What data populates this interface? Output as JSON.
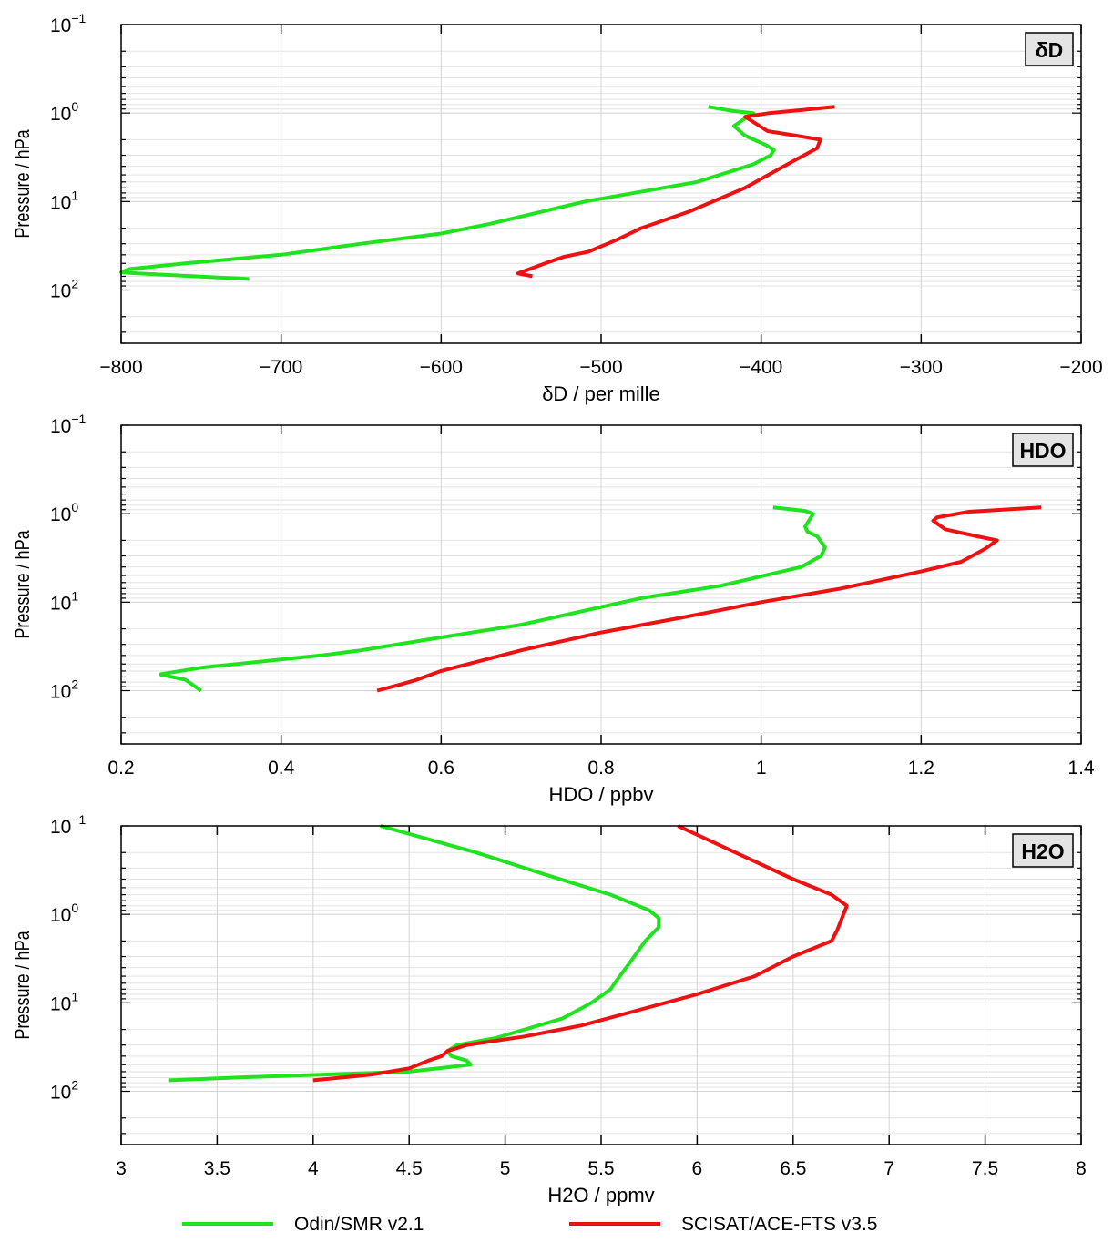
{
  "legend": [
    {
      "name": "Odin/SMR v2.1",
      "color": "#1ee31e"
    },
    {
      "name": "SCISAT/ACE-FTS v3.5",
      "color": "#ee1111"
    }
  ],
  "chart_data": [
    {
      "type": "line",
      "tag": "δD",
      "xlabel": "δD / per mille",
      "ylabel": "Pressure / hPa",
      "xlim": [
        -800,
        -200
      ],
      "xticks": [
        -800,
        -700,
        -600,
        -500,
        -400,
        -300,
        -200
      ],
      "xtick_labels": [
        "−800",
        "−700",
        "−600",
        "−500",
        "−400",
        "−300",
        "−200"
      ],
      "ylim": [
        0.1,
        400
      ],
      "yscale": "log",
      "yticks": [
        0.1,
        1,
        10,
        100
      ],
      "grid": true,
      "series": [
        {
          "name": "Odin/SMR v2.1",
          "color": "#1ee31e",
          "x": [
            -433,
            -417,
            -405,
            -417,
            -410,
            -397,
            -392,
            -394,
            -405,
            -440,
            -510,
            -570,
            -600,
            -650,
            -700,
            -760,
            -795,
            -800,
            -790,
            -720
          ],
          "y": [
            0.85,
            0.95,
            1.0,
            1.4,
            1.8,
            2.3,
            2.6,
            3.0,
            3.8,
            6.0,
            10,
            18,
            23,
            30,
            40,
            50,
            58,
            63,
            65,
            75
          ]
        },
        {
          "name": "SCISAT/ACE-FTS v3.5",
          "color": "#ee1111",
          "x": [
            -354,
            -395,
            -410,
            -396,
            -378,
            -363,
            -365,
            -380,
            -410,
            -445,
            -475,
            -490,
            -508,
            -523,
            -535,
            -552,
            -543
          ],
          "y": [
            0.85,
            1.0,
            1.1,
            1.6,
            1.8,
            2.0,
            2.5,
            3.5,
            7.0,
            13,
            20,
            27,
            37,
            42,
            50,
            65,
            70
          ]
        }
      ]
    },
    {
      "type": "line",
      "tag": "HDO",
      "xlabel": "HDO / ppbv",
      "ylabel": "Pressure / hPa",
      "xlim": [
        0.2,
        1.4
      ],
      "xticks": [
        0.2,
        0.4,
        0.6,
        0.8,
        1,
        1.2,
        1.4
      ],
      "xtick_labels": [
        "0.2",
        "0.4",
        "0.6",
        "0.8",
        "1",
        "1.2",
        "1.4"
      ],
      "ylim": [
        0.1,
        400
      ],
      "yscale": "log",
      "yticks": [
        0.1,
        1,
        10,
        100
      ],
      "grid": true,
      "series": [
        {
          "name": "Odin/SMR v2.1",
          "color": "#1ee31e",
          "x": [
            1.015,
            1.055,
            1.065,
            1.055,
            1.058,
            1.07,
            1.08,
            1.075,
            1.05,
            0.95,
            0.85,
            0.7,
            0.6,
            0.5,
            0.45,
            0.3,
            0.25,
            0.25,
            0.28,
            0.3
          ],
          "y": [
            0.85,
            0.93,
            1.0,
            1.4,
            1.6,
            1.8,
            2.4,
            3.0,
            4.0,
            6.5,
            9.0,
            18,
            25,
            35,
            40,
            55,
            65,
            66,
            75,
            100
          ]
        },
        {
          "name": "SCISAT/ACE-FTS v3.5",
          "color": "#ee1111",
          "x": [
            1.35,
            1.26,
            1.22,
            1.215,
            1.23,
            1.27,
            1.295,
            1.28,
            1.25,
            1.2,
            1.1,
            1.0,
            0.9,
            0.8,
            0.7,
            0.6,
            0.57,
            0.55,
            0.52
          ],
          "y": [
            0.85,
            0.95,
            1.1,
            1.2,
            1.5,
            1.8,
            2.0,
            2.5,
            3.5,
            4.5,
            7.0,
            10,
            15,
            22,
            35,
            60,
            75,
            85,
            100
          ]
        }
      ]
    },
    {
      "type": "line",
      "tag": "H2O",
      "xlabel": "H2O / ppmv",
      "ylabel": "Pressure / hPa",
      "xlim": [
        3,
        8
      ],
      "xticks": [
        3,
        3.5,
        4,
        4.5,
        5,
        5.5,
        6,
        6.5,
        7,
        7.5,
        8
      ],
      "xtick_labels": [
        "3",
        "3.5",
        "4",
        "4.5",
        "5",
        "5.5",
        "6",
        "6.5",
        "7",
        "7.5",
        "8"
      ],
      "ylim": [
        0.1,
        400
      ],
      "yscale": "log",
      "yticks": [
        0.1,
        1,
        10,
        100
      ],
      "grid": true,
      "series": [
        {
          "name": "Odin/SMR v2.1",
          "color": "#1ee31e",
          "x": [
            4.35,
            4.85,
            5.2,
            5.55,
            5.75,
            5.8,
            5.8,
            5.73,
            5.65,
            5.57,
            5.55,
            5.45,
            5.3,
            4.95,
            4.75,
            4.7,
            4.72,
            4.8,
            4.82,
            4.5,
            3.6,
            3.25
          ],
          "y": [
            0.1,
            0.2,
            0.35,
            0.6,
            0.9,
            1.1,
            1.4,
            2.0,
            3.5,
            6.0,
            7.0,
            10,
            15,
            25,
            30,
            35,
            40,
            45,
            50,
            60,
            70,
            75
          ]
        },
        {
          "name": "SCISAT/ACE-FTS v3.5",
          "color": "#ee1111",
          "x": [
            5.9,
            6.2,
            6.5,
            6.7,
            6.78,
            6.73,
            6.7,
            6.5,
            6.3,
            6.0,
            5.7,
            5.4,
            5.1,
            4.8,
            4.7,
            4.67,
            4.6,
            4.5,
            4.3,
            4.0
          ],
          "y": [
            0.1,
            0.2,
            0.4,
            0.6,
            0.8,
            1.5,
            2.0,
            3.0,
            5.0,
            8.0,
            12,
            18,
            24,
            30,
            35,
            40,
            45,
            55,
            65,
            75
          ]
        }
      ]
    }
  ]
}
